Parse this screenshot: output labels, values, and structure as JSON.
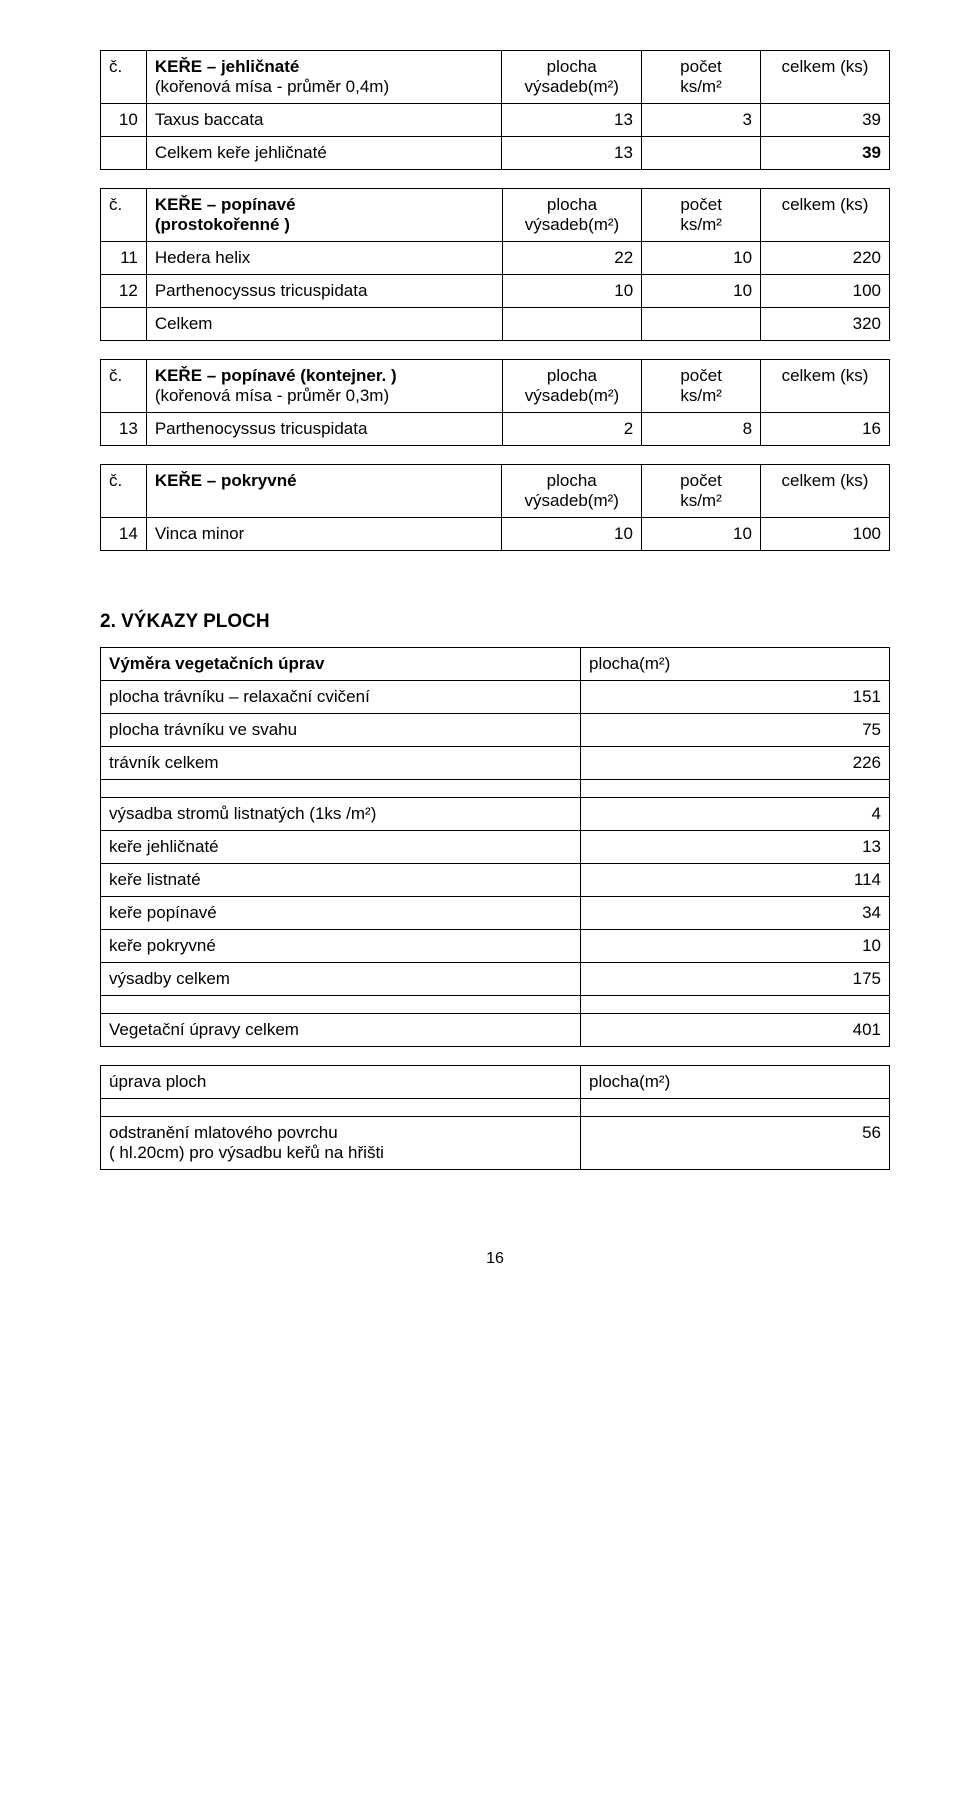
{
  "table1": {
    "h_num": "č.",
    "h_name1": "KEŘE – jehličnaté",
    "h_name2": "(kořenová mísa - průměr 0,4m)",
    "h_a1": "plocha",
    "h_a2": "výsadeb(m²)",
    "h_b1": "počet",
    "h_b2": "ks/m²",
    "h_c": "celkem (ks)",
    "r1_num": "10",
    "r1_name": "Taxus baccata",
    "r1_a": "13",
    "r1_b": "3",
    "r1_c": "39",
    "r2_name": "Celkem keře jehličnaté",
    "r2_a": "13",
    "r2_c": "39"
  },
  "table2": {
    "h_num": "č.",
    "h_name1": "KEŘE – popínavé",
    "h_name2": "(prostokořenné )",
    "h_a1": "plocha",
    "h_a2": "výsadeb(m²)",
    "h_b1": "počet",
    "h_b2": "ks/m²",
    "h_c": "celkem (ks)",
    "r1_num": "11",
    "r1_name": "Hedera helix",
    "r1_a": "22",
    "r1_b": "10",
    "r1_c": "220",
    "r2_num": "12",
    "r2_name": "Parthenocyssus tricuspidata",
    "r2_a": "10",
    "r2_b": "10",
    "r2_c": "100",
    "r3_name": "Celkem",
    "r3_c": "320"
  },
  "table3": {
    "h_num": "č.",
    "h_name1": "KEŘE – popínavé  (kontejner. )",
    "h_name2": "(kořenová mísa - průměr 0,3m)",
    "h_a1": "plocha",
    "h_a2": "výsadeb(m²)",
    "h_b1": "počet",
    "h_b2": "ks/m²",
    "h_c": "celkem (ks)",
    "r1_num": "13",
    "r1_name": "Parthenocyssus tricuspidata",
    "r1_a": "2",
    "r1_b": "8",
    "r1_c": "16"
  },
  "table4": {
    "h_num": "č.",
    "h_name1": "KEŘE – pokryvné",
    "h_a1": "plocha",
    "h_a2": "výsadeb(m²)",
    "h_b1": "počet",
    "h_b2": "ks/m²",
    "h_c": "celkem (ks)",
    "r1_num": "14",
    "r1_name": "Vinca minor",
    "r1_a": "10",
    "r1_b": "10",
    "r1_c": "100"
  },
  "section2_title": "2. VÝKAZY  PLOCH",
  "table5": {
    "h_name": "Výměra vegetačních úprav",
    "h_val": "plocha(m²)",
    "r1_name": "plocha trávníku – relaxační cvičení",
    "r1_val": "151",
    "r2_name": "plocha trávníku ve svahu",
    "r2_val": "75",
    "r3_name": "trávník celkem",
    "r3_val": "226",
    "r4_name": "výsadba stromů listnatých (1ks /m²)",
    "r4_val": "4",
    "r5_name": "keře jehličnaté",
    "r5_val": "13",
    "r6_name": "keře listnaté",
    "r6_val": "114",
    "r7_name": "keře popínavé",
    "r7_val": "34",
    "r8_name": "keře pokryvné",
    "r8_val": "10",
    "r9_name": "výsadby celkem",
    "r9_val": "175",
    "r10_name": "Vegetační úpravy celkem",
    "r10_val": "401"
  },
  "table6": {
    "h_name": "úprava ploch",
    "h_val": "plocha(m²)",
    "r1_name1": "odstranění mlatového povrchu",
    "r1_name2": "( hl.20cm) pro výsadbu keřů na hřišti",
    "r1_val": "56"
  },
  "page_number": "16"
}
